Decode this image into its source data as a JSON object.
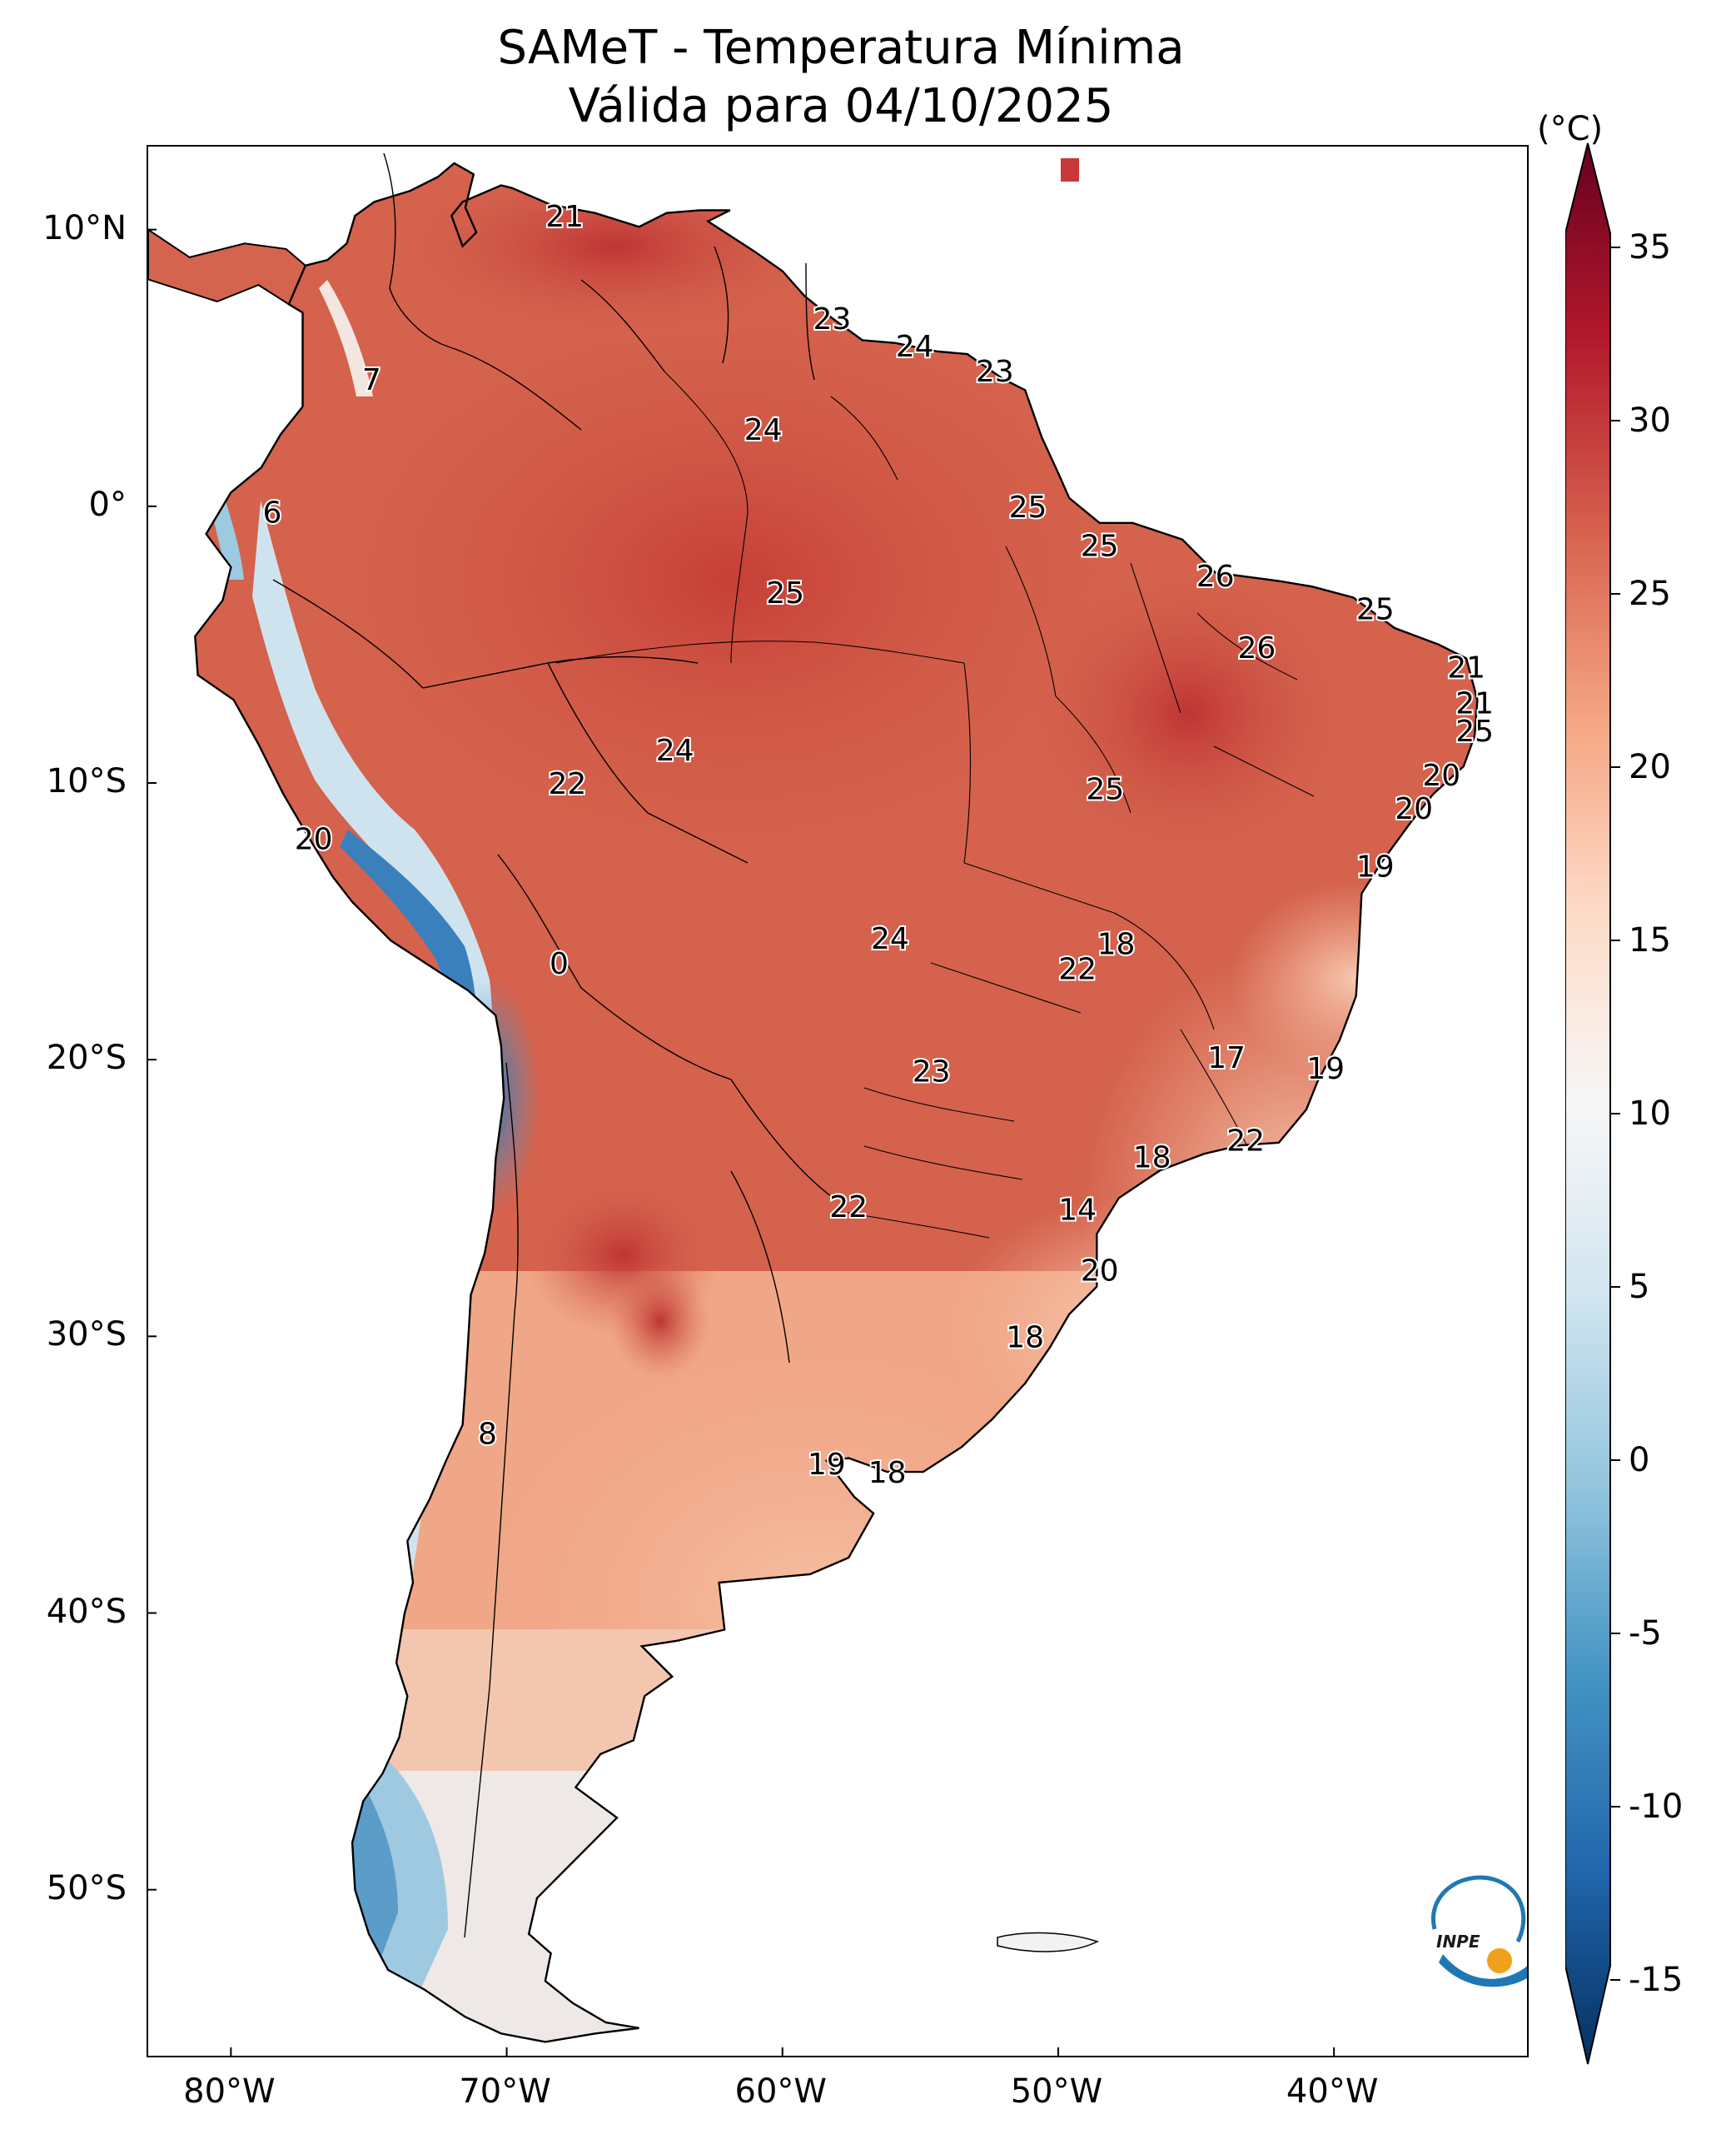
{
  "title": {
    "line1": "SAMeT - Temperatura Mínima",
    "line2": "Válida para 04/10/2025"
  },
  "map": {
    "lon_range": [
      -83,
      -33
    ],
    "lat_range": [
      -56,
      13
    ],
    "lon_ticks": [
      {
        "lon": -80,
        "label": "80°W"
      },
      {
        "lon": -70,
        "label": "70°W"
      },
      {
        "lon": -60,
        "label": "60°W"
      },
      {
        "lon": -50,
        "label": "50°W"
      },
      {
        "lon": -40,
        "label": "40°W"
      }
    ],
    "lat_ticks": [
      {
        "lat": 10,
        "label": "10°N"
      },
      {
        "lat": 0,
        "label": "0°"
      },
      {
        "lat": -10,
        "label": "10°S"
      },
      {
        "lat": -20,
        "label": "20°S"
      },
      {
        "lat": -30,
        "label": "30°S"
      },
      {
        "lat": -40,
        "label": "40°S"
      },
      {
        "lat": -50,
        "label": "50°S"
      }
    ],
    "city_values": [
      {
        "value": "21",
        "lon": -67.9,
        "lat": 10.5
      },
      {
        "value": "7",
        "lon": -74.9,
        "lat": 4.6
      },
      {
        "value": "6",
        "lon": -78.5,
        "lat": -0.2
      },
      {
        "value": "23",
        "lon": -58.2,
        "lat": 6.8
      },
      {
        "value": "24",
        "lon": -55.2,
        "lat": 5.8
      },
      {
        "value": "23",
        "lon": -52.3,
        "lat": 4.9
      },
      {
        "value": "24",
        "lon": -60.7,
        "lat": 2.8
      },
      {
        "value": "25",
        "lon": -51.1,
        "lat": 0.0
      },
      {
        "value": "25",
        "lon": -59.9,
        "lat": -3.1
      },
      {
        "value": "25",
        "lon": -48.5,
        "lat": -1.4
      },
      {
        "value": "26",
        "lon": -44.3,
        "lat": -2.5
      },
      {
        "value": "25",
        "lon": -38.5,
        "lat": -3.7
      },
      {
        "value": "26",
        "lon": -42.8,
        "lat": -5.1
      },
      {
        "value": "21",
        "lon": -35.2,
        "lat": -5.8
      },
      {
        "value": "21",
        "lon": -34.9,
        "lat": -7.1
      },
      {
        "value": "25",
        "lon": -34.9,
        "lat": -8.1
      },
      {
        "value": "24",
        "lon": -63.9,
        "lat": -8.8
      },
      {
        "value": "22",
        "lon": -67.8,
        "lat": -10.0
      },
      {
        "value": "25",
        "lon": -48.3,
        "lat": -10.2
      },
      {
        "value": "20",
        "lon": -36.1,
        "lat": -9.7
      },
      {
        "value": "20",
        "lon": -37.1,
        "lat": -10.9
      },
      {
        "value": "20",
        "lon": -77.0,
        "lat": -12.0
      },
      {
        "value": "19",
        "lon": -38.5,
        "lat": -13.0
      },
      {
        "value": "0",
        "lon": -68.1,
        "lat": -16.5
      },
      {
        "value": "24",
        "lon": -56.1,
        "lat": -15.6
      },
      {
        "value": "18",
        "lon": -47.9,
        "lat": -15.8
      },
      {
        "value": "22",
        "lon": -49.3,
        "lat": -16.7
      },
      {
        "value": "17",
        "lon": -43.9,
        "lat": -19.9
      },
      {
        "value": "19",
        "lon": -40.3,
        "lat": -20.3
      },
      {
        "value": "23",
        "lon": -54.6,
        "lat": -20.4
      },
      {
        "value": "22",
        "lon": -43.2,
        "lat": -22.9
      },
      {
        "value": "18",
        "lon": -46.6,
        "lat": -23.5
      },
      {
        "value": "22",
        "lon": -57.6,
        "lat": -25.3
      },
      {
        "value": "14",
        "lon": -49.3,
        "lat": -25.4
      },
      {
        "value": "20",
        "lon": -48.5,
        "lat": -27.6
      },
      {
        "value": "18",
        "lon": -51.2,
        "lat": -30.0
      },
      {
        "value": "8",
        "lon": -70.7,
        "lat": -33.5
      },
      {
        "value": "19",
        "lon": -58.4,
        "lat": -34.6
      },
      {
        "value": "18",
        "lon": -56.2,
        "lat": -34.9
      }
    ]
  },
  "colorbar": {
    "unit": "(°C)",
    "vmin": -15,
    "vmax": 35,
    "ticks": [
      {
        "value": 35,
        "label": "35"
      },
      {
        "value": 30,
        "label": "30"
      },
      {
        "value": 25,
        "label": "25"
      },
      {
        "value": 20,
        "label": "20"
      },
      {
        "value": 15,
        "label": "15"
      },
      {
        "value": 10,
        "label": "10"
      },
      {
        "value": 5,
        "label": "5"
      },
      {
        "value": 0,
        "label": "0"
      },
      {
        "value": -5,
        "label": "-5"
      },
      {
        "value": -10,
        "label": "-10"
      },
      {
        "value": -15,
        "label": "-15"
      }
    ],
    "colors": [
      "#053061",
      "#2166ac",
      "#4393c3",
      "#92c5de",
      "#d1e5f0",
      "#f7f7f7",
      "#fddbc7",
      "#f4a582",
      "#d6604d",
      "#b2182b",
      "#67001f"
    ]
  },
  "logo": {
    "text": "INPE"
  }
}
